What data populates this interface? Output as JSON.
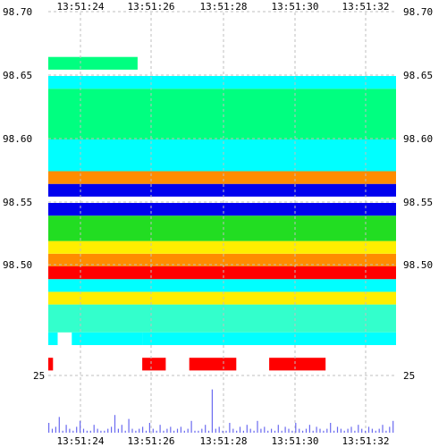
{
  "chart_data": [
    {
      "type": "heatmap",
      "title": "",
      "xlabel": "",
      "ylabel": "",
      "x_ticks": [
        "13:51:24",
        "13:51:26",
        "13:51:28",
        "13:51:30",
        "13:51:32"
      ],
      "y_ticks": [
        "98.70",
        "98.65",
        "98.60",
        "98.55",
        "98.50"
      ],
      "ylim": [
        98.4,
        98.7
      ],
      "grid": true,
      "colorscale": [
        "#ff0000",
        "#ff7f00",
        "#ffff00",
        "#00ff7f",
        "#00ffff",
        "#0000ff",
        "#8000ff"
      ],
      "colors": {
        "red": "#ff0000",
        "orange": "#ff8c00",
        "yellow": "#ffee00",
        "spring": "#00ff80",
        "green": "#22dd22",
        "cyan": "#00ffff",
        "teal": "#33ffcc",
        "blue": "#0000ee",
        "violet": "#8822ff",
        "white": "#ffffff"
      },
      "note_bands": [
        {
          "price_from": 98.418,
          "price_to": 98.428,
          "color": "red",
          "segments": [
            [
              0.0,
              0.5
            ],
            [
              10.0,
              12.5
            ],
            [
              15.0,
              20.0
            ],
            [
              23.5,
              29.5
            ]
          ]
        },
        {
          "price_from": 98.428,
          "price_to": 98.438,
          "color": "white",
          "segments": []
        },
        {
          "price_from": 98.438,
          "price_to": 98.448,
          "color": "cyan",
          "segments": [
            [
              0.0,
              1.0
            ],
            [
              2.5,
              10.0
            ],
            [
              10.0,
              37.0
            ]
          ]
        },
        {
          "price_from": 98.448,
          "price_to": 98.47,
          "color": "teal",
          "segments": [
            [
              0.0,
              37.0
            ]
          ]
        },
        {
          "price_from": 98.47,
          "price_to": 98.48,
          "color": "yellow",
          "segments": [
            [
              0.0,
              37.0
            ]
          ]
        },
        {
          "price_from": 98.48,
          "price_to": 98.49,
          "color": "cyan",
          "segments": [
            [
              0.0,
              37.0
            ]
          ]
        },
        {
          "price_from": 98.49,
          "price_to": 98.5,
          "color": "red",
          "segments": [
            [
              0.0,
              37.0
            ]
          ]
        },
        {
          "price_from": 98.5,
          "price_to": 98.51,
          "color": "orange",
          "segments": [
            [
              0.0,
              37.0
            ]
          ]
        },
        {
          "price_from": 98.51,
          "price_to": 98.52,
          "color": "yellow",
          "segments": [
            [
              0.0,
              37.0
            ]
          ]
        },
        {
          "price_from": 98.52,
          "price_to": 98.54,
          "color": "green",
          "segments": [
            [
              0.0,
              37.0
            ]
          ]
        },
        {
          "price_from": 98.54,
          "price_to": 98.55,
          "color": "blue",
          "segments": [
            [
              0.0,
              37.0
            ]
          ]
        },
        {
          "price_from": 98.555,
          "price_to": 98.565,
          "color": "blue",
          "segments": [
            [
              0.0,
              37.0
            ]
          ]
        },
        {
          "price_from": 98.565,
          "price_to": 98.575,
          "color": "orange",
          "segments": [
            [
              0.0,
              37.0
            ]
          ]
        },
        {
          "price_from": 98.575,
          "price_to": 98.6,
          "color": "cyan",
          "segments": [
            [
              0.0,
              37.0
            ]
          ]
        },
        {
          "price_from": 98.6,
          "price_to": 98.64,
          "color": "spring",
          "segments": [
            [
              0.0,
              37.0
            ]
          ]
        },
        {
          "price_from": 98.64,
          "price_to": 98.65,
          "color": "cyan",
          "segments": [
            [
              0.0,
              37.0
            ]
          ]
        },
        {
          "price_from": 98.655,
          "price_to": 98.665,
          "color": "spring",
          "segments": [
            [
              0.0,
              9.5
            ]
          ]
        }
      ],
      "volume_axis": {
        "ticks": [
          "25"
        ]
      },
      "volumes": [
        5,
        2,
        3,
        8,
        1,
        4,
        2,
        1,
        3,
        6,
        2,
        1,
        1,
        4,
        2,
        1,
        1,
        2,
        3,
        9,
        2,
        4,
        1,
        7,
        2,
        1,
        2,
        3,
        1,
        5,
        2,
        1,
        4,
        1,
        2,
        3,
        1,
        2,
        3,
        1,
        2,
        6,
        1,
        1,
        2,
        4,
        1,
        22,
        2,
        3,
        1,
        1,
        5,
        2,
        1,
        3,
        1,
        4,
        2,
        1,
        6,
        2,
        3,
        1,
        2,
        1,
        4,
        1,
        3,
        2,
        1,
        5,
        2,
        1,
        2,
        4,
        1,
        3,
        2,
        1,
        2,
        5,
        1,
        3,
        2,
        1,
        2,
        3,
        1,
        4,
        2,
        1,
        3,
        2,
        1,
        2,
        4,
        1,
        3,
        6
      ]
    }
  ]
}
